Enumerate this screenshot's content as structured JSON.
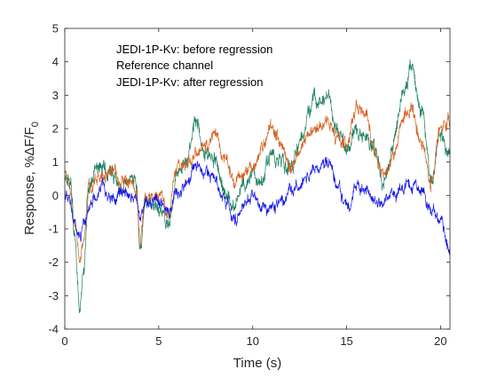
{
  "chart_data": {
    "type": "line",
    "xlabel": "Time (s)",
    "ylabel": {
      "main": "Response, %ΔF/F",
      "subscript": "0"
    },
    "xlim": [
      0,
      20.5
    ],
    "ylim": [
      -4,
      5
    ],
    "xticks": [
      0,
      5,
      10,
      15,
      20
    ],
    "xtick_labels": [
      "0",
      "5",
      "10",
      "15",
      "20"
    ],
    "yticks": [
      -4,
      -3,
      -2,
      -1,
      0,
      1,
      2,
      3,
      4,
      5
    ],
    "ytick_labels": [
      "-4",
      "-3",
      "-2",
      "-1",
      "0",
      "1",
      "2",
      "3",
      "4",
      "5"
    ],
    "grid": false,
    "legend_placement": "top-left",
    "legend": [
      "JEDI-1P-Kv: before regression",
      "Reference channel",
      "JEDI-1P-Kv: after regression"
    ],
    "series": [
      {
        "name": "JEDI-1P-Kv: before regression",
        "color": "#1b7f5e",
        "noise_amplitude": 0.45,
        "x": [
          0,
          0.3,
          0.5,
          0.8,
          1.0,
          1.3,
          1.6,
          2.0,
          2.5,
          3.0,
          3.5,
          3.8,
          4.0,
          4.3,
          5.0,
          5.5,
          6.0,
          6.5,
          7.0,
          7.5,
          8.0,
          8.5,
          9.0,
          9.5,
          10.0,
          10.5,
          11.0,
          11.5,
          12.0,
          12.5,
          13.0,
          13.5,
          14.0,
          14.5,
          15.0,
          15.5,
          16.0,
          16.5,
          17.0,
          17.5,
          18.0,
          18.5,
          19.0,
          19.5,
          20.0,
          20.5
        ],
        "y": [
          0.4,
          0.3,
          -1.0,
          -3.3,
          -2.3,
          0.2,
          0.6,
          0.9,
          0.7,
          0.2,
          0.5,
          0.3,
          -1.6,
          -0.3,
          -0.3,
          -0.8,
          0.7,
          1.0,
          2.3,
          1.2,
          1.0,
          0.1,
          -0.3,
          0.2,
          0.7,
          0.5,
          1.2,
          1.0,
          0.8,
          1.5,
          2.5,
          2.9,
          2.8,
          1.9,
          1.4,
          1.8,
          1.9,
          1.5,
          0.4,
          1.6,
          3.1,
          3.8,
          2.5,
          0.3,
          1.8,
          1.2
        ]
      },
      {
        "name": "Reference channel",
        "color": "#d45f1f",
        "noise_amplitude": 0.4,
        "x": [
          0,
          0.3,
          0.5,
          0.8,
          1.0,
          1.3,
          1.6,
          2.0,
          2.5,
          3.0,
          3.5,
          3.8,
          4.0,
          4.3,
          5.0,
          5.5,
          6.0,
          6.5,
          7.0,
          7.5,
          8.0,
          8.5,
          9.0,
          9.5,
          10.0,
          10.5,
          11.0,
          11.5,
          12.0,
          12.5,
          13.0,
          13.5,
          14.0,
          14.5,
          15.0,
          15.5,
          16.0,
          16.5,
          17.0,
          17.5,
          18.0,
          18.5,
          19.0,
          19.5,
          20.0,
          20.5
        ],
        "y": [
          0.6,
          0.2,
          -0.9,
          -1.9,
          -1.2,
          0.3,
          0.6,
          0.5,
          0.8,
          0.3,
          0.4,
          0.2,
          -1.4,
          -0.1,
          -0.1,
          -0.5,
          0.8,
          0.9,
          1.3,
          1.5,
          1.8,
          1.2,
          0.3,
          0.6,
          0.7,
          1.6,
          2.0,
          1.5,
          0.7,
          1.4,
          1.8,
          2.2,
          2.3,
          1.7,
          1.5,
          2.6,
          2.4,
          1.3,
          0.4,
          1.1,
          2.4,
          2.5,
          1.6,
          0.4,
          2.0,
          2.2
        ]
      },
      {
        "name": "JEDI-1P-Kv: after regression",
        "color": "#1414e6",
        "noise_amplitude": 0.35,
        "x": [
          0,
          0.3,
          0.5,
          0.8,
          1.0,
          1.3,
          1.6,
          2.0,
          2.5,
          3.0,
          3.5,
          3.8,
          4.0,
          4.3,
          5.0,
          5.5,
          6.0,
          6.5,
          7.0,
          7.5,
          8.0,
          8.5,
          9.0,
          9.5,
          10.0,
          10.5,
          11.0,
          11.5,
          12.0,
          12.5,
          13.0,
          13.5,
          14.0,
          14.5,
          15.0,
          15.5,
          16.0,
          16.5,
          17.0,
          17.5,
          18.0,
          18.5,
          19.0,
          19.5,
          20.0,
          20.5
        ],
        "y": [
          0.0,
          -0.2,
          -0.6,
          -1.3,
          -0.9,
          -0.3,
          0.0,
          0.3,
          -0.1,
          0.0,
          0.0,
          -0.1,
          -0.7,
          -0.3,
          -0.2,
          -0.6,
          0.1,
          0.4,
          0.9,
          0.7,
          0.5,
          -0.2,
          -0.8,
          -0.4,
          0.1,
          -0.3,
          -0.4,
          -0.3,
          0.1,
          0.3,
          0.6,
          0.8,
          1.0,
          0.2,
          -0.3,
          0.2,
          0.2,
          -0.1,
          -0.3,
          0.1,
          0.2,
          0.3,
          0.1,
          -0.4,
          -0.6,
          -1.6
        ]
      }
    ]
  }
}
